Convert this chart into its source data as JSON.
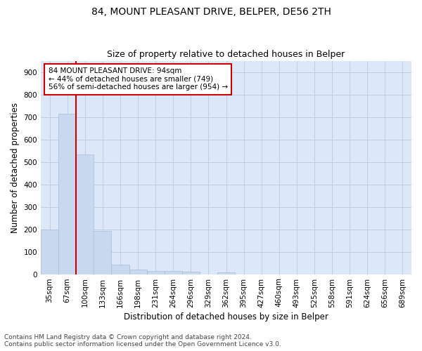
{
  "title": "84, MOUNT PLEASANT DRIVE, BELPER, DE56 2TH",
  "subtitle": "Size of property relative to detached houses in Belper",
  "xlabel": "Distribution of detached houses by size in Belper",
  "ylabel": "Number of detached properties",
  "categories": [
    "35sqm",
    "67sqm",
    "100sqm",
    "133sqm",
    "166sqm",
    "198sqm",
    "231sqm",
    "264sqm",
    "296sqm",
    "329sqm",
    "362sqm",
    "395sqm",
    "427sqm",
    "460sqm",
    "493sqm",
    "525sqm",
    "558sqm",
    "591sqm",
    "624sqm",
    "656sqm",
    "689sqm"
  ],
  "values": [
    200,
    715,
    535,
    193,
    42,
    20,
    15,
    13,
    10,
    0,
    8,
    0,
    0,
    0,
    0,
    0,
    0,
    0,
    0,
    0,
    0
  ],
  "bar_color": "#c8d8ee",
  "bar_edge_color": "#a8bcd8",
  "vline_index": 2,
  "annotation_line1": "84 MOUNT PLEASANT DRIVE: 94sqm",
  "annotation_line2": "← 44% of detached houses are smaller (749)",
  "annotation_line3": "56% of semi-detached houses are larger (954) →",
  "annotation_box_color": "#ffffff",
  "annotation_box_edge": "#cc0000",
  "vline_color": "#cc0000",
  "ylim": [
    0,
    950
  ],
  "yticks": [
    0,
    100,
    200,
    300,
    400,
    500,
    600,
    700,
    800,
    900
  ],
  "footer_line1": "Contains HM Land Registry data © Crown copyright and database right 2024.",
  "footer_line2": "Contains public sector information licensed under the Open Government Licence v3.0.",
  "plot_bg_color": "#dce8f8",
  "fig_bg_color": "#ffffff",
  "grid_color": "#c0cfdf",
  "title_fontsize": 10,
  "subtitle_fontsize": 9,
  "axis_label_fontsize": 8.5,
  "tick_fontsize": 7.5,
  "annotation_fontsize": 7.5,
  "footer_fontsize": 6.5
}
